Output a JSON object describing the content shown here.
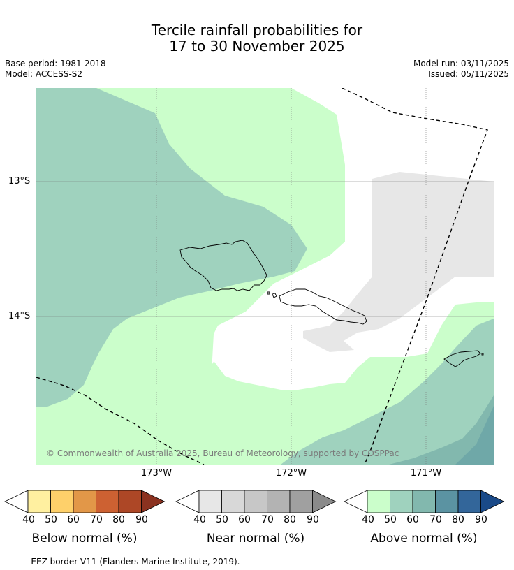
{
  "title": {
    "line1": "Tercile rainfall probabilities for",
    "line2": "17 to 30 November 2025"
  },
  "info": {
    "base_period": "Base period: 1981-2018",
    "model": "Model: ACCESS-S2",
    "model_run": "Model run: 03/11/2025",
    "issued": "Issued: 05/11/2025"
  },
  "map": {
    "lat_labels": [
      "13°S",
      "14°S"
    ],
    "lon_labels": [
      "173°W",
      "172°W",
      "171°W"
    ],
    "copyright": "© Commonwealth of Australia 2025, Bureau of Meteorology, supported by COSPPac"
  },
  "legend": {
    "ticks": [
      "40",
      "50",
      "60",
      "70",
      "80",
      "90"
    ],
    "below": {
      "title": "Below normal (%)",
      "colors": [
        "#ffffff",
        "#fff0a0",
        "#fed06a",
        "#e29748",
        "#cd6132",
        "#ad4726",
        "#8b3220"
      ]
    },
    "near": {
      "title": "Near normal (%)",
      "colors": [
        "#ffffff",
        "#e7e7e7",
        "#d8d8d8",
        "#c7c7c7",
        "#b3b3b3",
        "#a0a0a0",
        "#8a8a8a"
      ]
    },
    "above": {
      "title": "Above normal (%)",
      "colors": [
        "#ffffff",
        "#cbfecb",
        "#9fd2be",
        "#82b8ae",
        "#5b93a2",
        "#33669a",
        "#1a4a88"
      ]
    }
  },
  "footnote": "--  --  -- EEZ border V11 (Flanders Marine Institute, 2019)."
}
